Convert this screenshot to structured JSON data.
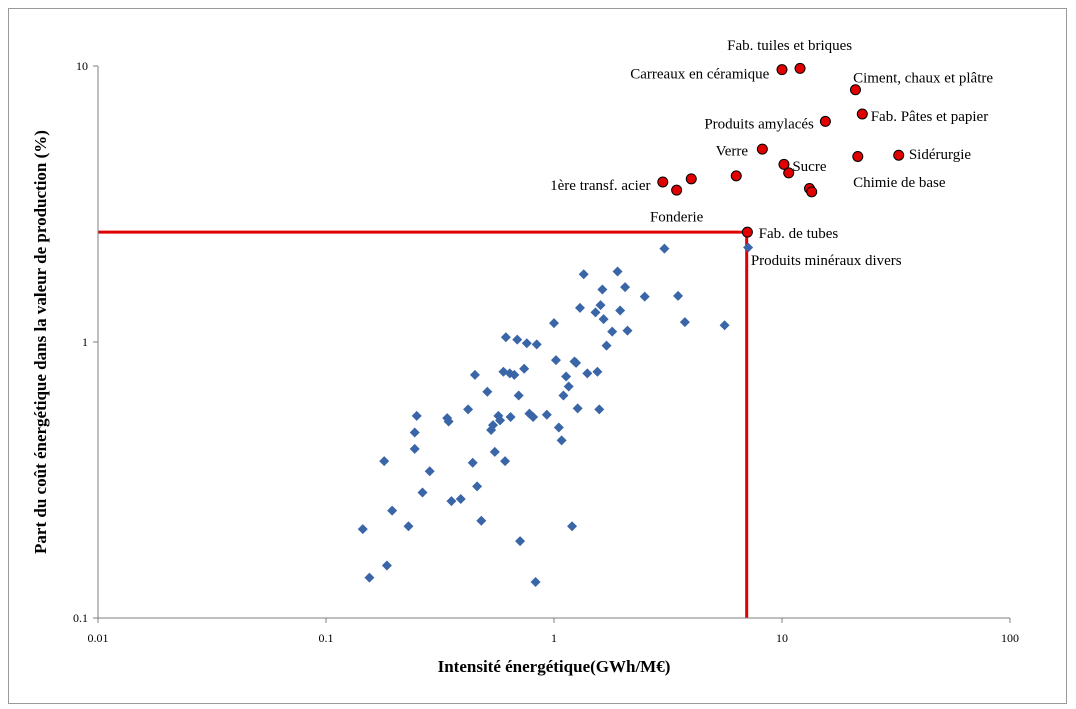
{
  "chart_data": {
    "type": "scatter",
    "xscale": "log",
    "yscale": "log",
    "xlim": [
      0.01,
      100
    ],
    "ylim": [
      0.1,
      10
    ],
    "xlabel": "Intensité énergétique(GWh/M€)",
    "ylabel": "Part du coût énergétique dans la valeur de production (%)",
    "xticks": [
      "0.01",
      "0.1",
      "1",
      "10",
      "100"
    ],
    "yticks": [
      "0.1",
      "1",
      "10"
    ],
    "grid": false,
    "threshold": {
      "x": 7,
      "y": 2.5,
      "color": "#e00000"
    },
    "colors": {
      "highlight": "#e00000",
      "other": "#3a66a8"
    },
    "series": [
      {
        "marker": "circle",
        "color": "#e00000",
        "points": [
          {
            "x": 10.0,
            "y": 9.7
          },
          {
            "x": 12.0,
            "y": 9.8
          },
          {
            "x": 21.0,
            "y": 8.2
          },
          {
            "x": 22.5,
            "y": 6.7
          },
          {
            "x": 15.5,
            "y": 6.3
          },
          {
            "x": 8.2,
            "y": 5.0
          },
          {
            "x": 10.2,
            "y": 4.4
          },
          {
            "x": 10.7,
            "y": 4.1
          },
          {
            "x": 13.2,
            "y": 3.6
          },
          {
            "x": 13.5,
            "y": 3.5
          },
          {
            "x": 21.5,
            "y": 4.7
          },
          {
            "x": 32.5,
            "y": 4.75
          },
          {
            "x": 6.3,
            "y": 4.0
          },
          {
            "x": 3.0,
            "y": 3.8
          },
          {
            "x": 3.45,
            "y": 3.55
          },
          {
            "x": 4.0,
            "y": 3.9
          },
          {
            "x": 7.05,
            "y": 2.5
          }
        ]
      },
      {
        "marker": "diamond",
        "color": "#3a66a8",
        "points": [
          {
            "x": 0.145,
            "y": 0.21
          },
          {
            "x": 0.155,
            "y": 0.14
          },
          {
            "x": 0.18,
            "y": 0.37
          },
          {
            "x": 0.185,
            "y": 0.155
          },
          {
            "x": 0.195,
            "y": 0.245
          },
          {
            "x": 0.23,
            "y": 0.215
          },
          {
            "x": 0.245,
            "y": 0.47
          },
          {
            "x": 0.245,
            "y": 0.41
          },
          {
            "x": 0.25,
            "y": 0.54
          },
          {
            "x": 0.265,
            "y": 0.285
          },
          {
            "x": 0.285,
            "y": 0.34
          },
          {
            "x": 0.34,
            "y": 0.53
          },
          {
            "x": 0.345,
            "y": 0.515
          },
          {
            "x": 0.355,
            "y": 0.265
          },
          {
            "x": 0.39,
            "y": 0.27
          },
          {
            "x": 0.42,
            "y": 0.57
          },
          {
            "x": 0.44,
            "y": 0.365
          },
          {
            "x": 0.45,
            "y": 0.76
          },
          {
            "x": 0.46,
            "y": 0.3
          },
          {
            "x": 0.48,
            "y": 0.225
          },
          {
            "x": 0.51,
            "y": 0.66
          },
          {
            "x": 0.53,
            "y": 0.48
          },
          {
            "x": 0.54,
            "y": 0.5
          },
          {
            "x": 0.55,
            "y": 0.4
          },
          {
            "x": 0.57,
            "y": 0.54
          },
          {
            "x": 0.58,
            "y": 0.52
          },
          {
            "x": 0.6,
            "y": 0.78
          },
          {
            "x": 0.61,
            "y": 0.37
          },
          {
            "x": 0.615,
            "y": 1.04
          },
          {
            "x": 0.64,
            "y": 0.77
          },
          {
            "x": 0.645,
            "y": 0.535
          },
          {
            "x": 0.67,
            "y": 0.76
          },
          {
            "x": 0.69,
            "y": 1.02
          },
          {
            "x": 0.7,
            "y": 0.64
          },
          {
            "x": 0.71,
            "y": 0.19
          },
          {
            "x": 0.74,
            "y": 0.8
          },
          {
            "x": 0.76,
            "y": 0.99
          },
          {
            "x": 0.78,
            "y": 0.55
          },
          {
            "x": 0.81,
            "y": 0.535
          },
          {
            "x": 0.83,
            "y": 0.135
          },
          {
            "x": 0.84,
            "y": 0.98
          },
          {
            "x": 0.93,
            "y": 0.545
          },
          {
            "x": 1.0,
            "y": 1.17
          },
          {
            "x": 1.02,
            "y": 0.86
          },
          {
            "x": 1.05,
            "y": 0.49
          },
          {
            "x": 1.08,
            "y": 0.44
          },
          {
            "x": 1.1,
            "y": 0.64
          },
          {
            "x": 1.13,
            "y": 0.75
          },
          {
            "x": 1.16,
            "y": 0.69
          },
          {
            "x": 1.2,
            "y": 0.215
          },
          {
            "x": 1.23,
            "y": 0.85
          },
          {
            "x": 1.25,
            "y": 0.84
          },
          {
            "x": 1.27,
            "y": 0.575
          },
          {
            "x": 1.3,
            "y": 1.33
          },
          {
            "x": 1.35,
            "y": 1.76
          },
          {
            "x": 1.4,
            "y": 0.77
          },
          {
            "x": 1.52,
            "y": 1.28
          },
          {
            "x": 1.55,
            "y": 0.78
          },
          {
            "x": 1.58,
            "y": 0.57
          },
          {
            "x": 1.6,
            "y": 1.36
          },
          {
            "x": 1.63,
            "y": 1.55
          },
          {
            "x": 1.65,
            "y": 1.21
          },
          {
            "x": 1.7,
            "y": 0.97
          },
          {
            "x": 1.8,
            "y": 1.09
          },
          {
            "x": 1.9,
            "y": 1.8
          },
          {
            "x": 1.95,
            "y": 1.3
          },
          {
            "x": 2.05,
            "y": 1.58
          },
          {
            "x": 2.1,
            "y": 1.1
          },
          {
            "x": 2.5,
            "y": 1.46
          },
          {
            "x": 3.05,
            "y": 2.18
          },
          {
            "x": 3.5,
            "y": 1.47
          },
          {
            "x": 3.75,
            "y": 1.18
          },
          {
            "x": 5.6,
            "y": 1.15
          },
          {
            "x": 7.1,
            "y": 2.2
          }
        ]
      }
    ],
    "annotations": [
      {
        "text": "Fab. tuiles et briques",
        "x": 10.8,
        "y": 11.9,
        "anchor": "middle"
      },
      {
        "text": "Carreaux en céramique",
        "x": 8.8,
        "y": 9.4,
        "anchor": "end"
      },
      {
        "text": "Ciment, chaux et plâtre",
        "x": 20.5,
        "y": 9.1,
        "anchor": "start"
      },
      {
        "text": "Fab. Pâtes et papier",
        "x": 24.5,
        "y": 6.6,
        "anchor": "start"
      },
      {
        "text": "Produits amylacés",
        "x": 13.8,
        "y": 6.2,
        "anchor": "end"
      },
      {
        "text": "Verre",
        "x": 7.1,
        "y": 4.95,
        "anchor": "end"
      },
      {
        "text": "Sucre",
        "x": 11.1,
        "y": 4.35,
        "anchor": "start"
      },
      {
        "text": "Sidérurgie",
        "x": 36.0,
        "y": 4.8,
        "anchor": "start"
      },
      {
        "text": "1ère transf. acier",
        "x": 2.65,
        "y": 3.7,
        "anchor": "end"
      },
      {
        "text": "Chimie de base",
        "x": 20.5,
        "y": 3.8,
        "anchor": "start"
      },
      {
        "text": "Fonderie",
        "x": 3.45,
        "y": 2.85,
        "anchor": "middle"
      },
      {
        "text": "Fab. de tubes",
        "x": 7.9,
        "y": 2.48,
        "anchor": "start"
      },
      {
        "text": "Produits minéraux divers",
        "x": 7.3,
        "y": 1.98,
        "anchor": "start"
      }
    ]
  }
}
